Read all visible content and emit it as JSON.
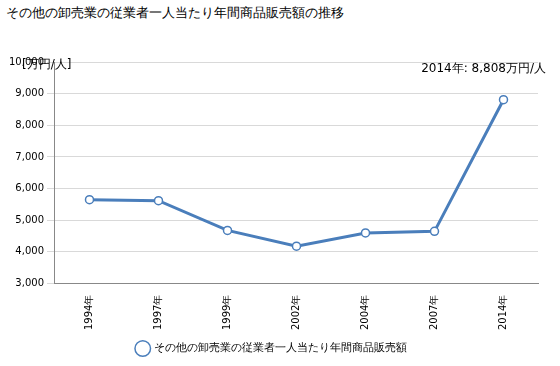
{
  "chart_data": {
    "type": "line",
    "title": "その他の卸売業の従業者一人当たり年間商品販売額の推移",
    "ylabel": "[万円/人]",
    "annotation": "2014年: 8,808万円/人",
    "categories": [
      "1994年",
      "1997年",
      "1999年",
      "2002年",
      "2004年",
      "2007年",
      "2014年"
    ],
    "series": [
      {
        "name": "その他の卸売業の従業者一人当たり年間商品販売額",
        "color": "#4a7ebb",
        "marker": "circle",
        "values": [
          5650,
          5620,
          4680,
          4180,
          4600,
          4650,
          8808
        ]
      }
    ],
    "ylim": [
      3000,
      10000
    ],
    "yticks": [
      {
        "value": 3000,
        "label": "3,000"
      },
      {
        "value": 4000,
        "label": "4,000"
      },
      {
        "value": 5000,
        "label": "5,000"
      },
      {
        "value": 6000,
        "label": "6,000"
      },
      {
        "value": 7000,
        "label": "7,000"
      },
      {
        "value": 8000,
        "label": "8,000"
      },
      {
        "value": 9000,
        "label": "9,000"
      },
      {
        "value": 10000,
        "label": "10,000"
      }
    ],
    "grid": true,
    "legend": "bottom"
  }
}
